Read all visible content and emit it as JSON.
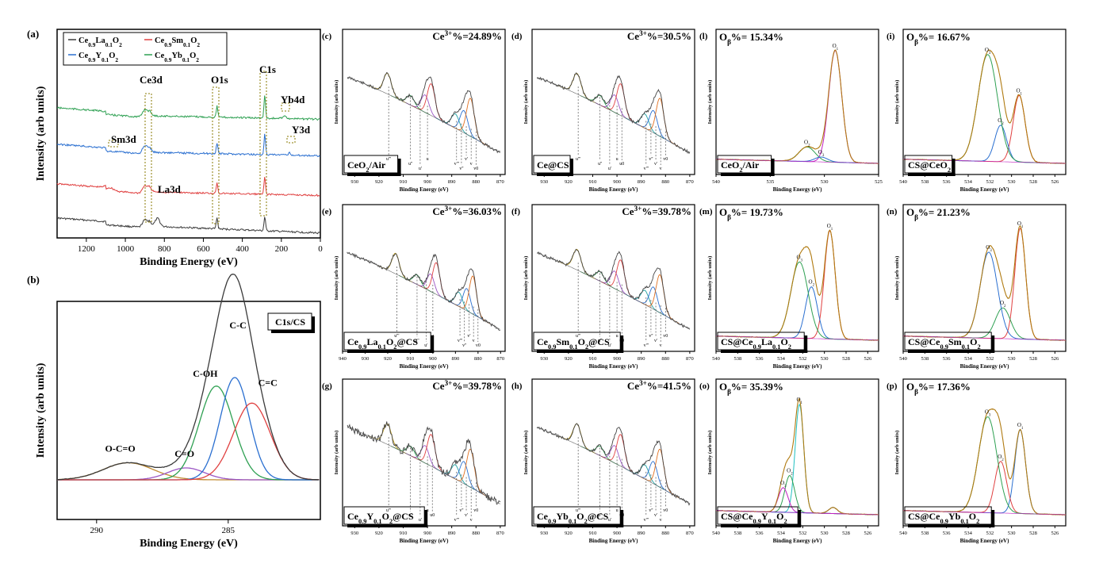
{
  "figure": {
    "panel_letters": {
      "a": "(a)",
      "b": "(b)",
      "c": "(c)",
      "d": "(d)",
      "e": "(e)",
      "f": "(f)",
      "g": "(g)",
      "h": "(h)",
      "l": "(l)",
      "i": "(i)",
      "m": "(m)",
      "n": "(n)",
      "o": "(o)",
      "p": "(p)"
    }
  },
  "chart_data": [
    {
      "id": "a",
      "type": "line",
      "xlabel": "Binding Energy (eV)",
      "ylabel": "Intensity (arb units)",
      "xlim": [
        1350,
        0
      ],
      "xticks": [
        1200,
        1000,
        800,
        600,
        400,
        200,
        0
      ],
      "legend": [
        "Ce0.9La0.1O2",
        "Ce0.9Sm0.1O2",
        "Ce0.9Y0.1O2",
        "Ce0.9Yb0.1O2"
      ],
      "legend_rich": [
        [
          [
            "Ce",
            ""
          ],
          [
            "0.9",
            "sub"
          ],
          [
            "La",
            ""
          ],
          [
            "0.1",
            "sub"
          ],
          [
            "O",
            ""
          ],
          [
            "2",
            "sub"
          ]
        ],
        [
          [
            "Ce",
            ""
          ],
          [
            "0.9",
            "sub"
          ],
          [
            "Sm",
            ""
          ],
          [
            "0.1",
            "sub"
          ],
          [
            "O",
            ""
          ],
          [
            "2",
            "sub"
          ]
        ],
        [
          [
            "Ce",
            ""
          ],
          [
            "0.9",
            "sub"
          ],
          [
            "Y",
            ""
          ],
          [
            "0.1",
            "sub"
          ],
          [
            "O",
            ""
          ],
          [
            "2",
            "sub"
          ]
        ],
        [
          [
            "Ce",
            ""
          ],
          [
            "0.9",
            "sub"
          ],
          [
            "Yb",
            ""
          ],
          [
            "0.1",
            "sub"
          ],
          [
            "O",
            ""
          ],
          [
            "2",
            "sub"
          ]
        ]
      ],
      "series_colors": [
        "#3a3a3a",
        "#e04040",
        "#2a6fd0",
        "#2ea052"
      ],
      "annotations": [
        "Ce3d",
        "O1s",
        "C1s",
        "Yb4d",
        "Y3d",
        "Sm3d",
        "La3d"
      ]
    },
    {
      "id": "b",
      "type": "line",
      "xlabel": "Binding Energy (eV)",
      "ylabel": "Intensity (arb units)",
      "xlim": [
        291.5,
        281.5
      ],
      "xticks": [
        290,
        285
      ],
      "label_box": "C1s/CS",
      "peaks": [
        {
          "label": "O-C=O",
          "center": 288.8,
          "height": 0.1,
          "width": 0.95,
          "color": "#c08a30"
        },
        {
          "label": "C=O",
          "center": 286.6,
          "height": 0.07,
          "width": 0.7,
          "color": "#9a55c4"
        },
        {
          "label": "C-OH",
          "center": 285.45,
          "height": 0.55,
          "width": 0.65,
          "color": "#2ea052"
        },
        {
          "label": "C-C",
          "center": 284.75,
          "height": 0.6,
          "width": 0.55,
          "color": "#2a6fd0"
        },
        {
          "label": "C=C",
          "center": 284.1,
          "height": 0.45,
          "width": 0.7,
          "color": "#e04040"
        }
      ],
      "envelope_color": "#3a3a3a"
    },
    {
      "id": "c",
      "type": "line",
      "xlabel": "Binding Energy (eV)",
      "ylabel": "Intensity (arb units)",
      "xlim": [
        935,
        868
      ],
      "xticks": [
        930,
        920,
        910,
        900,
        890,
        880,
        870
      ],
      "percent": "Ce3+%=24.89%",
      "percent_rich": [
        [
          "Ce",
          ""
        ],
        [
          "3+",
          "sup"
        ],
        [
          "%=24.89%",
          ""
        ]
      ],
      "sample": "CeO2/Air",
      "sample_rich": [
        [
          "CeO",
          ""
        ],
        [
          "2",
          "sub"
        ],
        [
          "/Air",
          ""
        ]
      ],
      "peak_labels": [
        "u'''",
        "u''",
        "u'",
        "u",
        "v'''",
        "v''",
        "v'",
        "v",
        "v0"
      ]
    },
    {
      "id": "d",
      "type": "line",
      "xlabel": "Binding Energy (eV)",
      "ylabel": "Intensity (arb units)",
      "xlim": [
        935,
        868
      ],
      "xticks": [
        930,
        920,
        910,
        900,
        890,
        880,
        870
      ],
      "percent": "Ce3+%=30.5%",
      "percent_rich": [
        [
          "Ce",
          ""
        ],
        [
          "3+",
          "sup"
        ],
        [
          "%=30.5%",
          ""
        ]
      ],
      "sample": "Ce@CS",
      "sample_rich": [
        [
          "Ce@CS",
          ""
        ]
      ],
      "peak_labels": [
        "u'''",
        "u''",
        "u'",
        "u",
        "u0",
        "v'''",
        "v''",
        "v'",
        "v",
        "v0"
      ]
    },
    {
      "id": "e",
      "type": "line",
      "xlabel": "Binding Energy (eV)",
      "ylabel": "Intensity (arb units)",
      "xlim": [
        940,
        868
      ],
      "xticks": [
        940,
        930,
        920,
        910,
        900,
        890,
        880,
        870
      ],
      "percent": "Ce3+%=36.03%",
      "percent_rich": [
        [
          "Ce",
          ""
        ],
        [
          "3+",
          "sup"
        ],
        [
          "%=36.03%",
          ""
        ]
      ],
      "sample": "Ce0.9La0.1O2@CS",
      "sample_rich": [
        [
          "Ce",
          ""
        ],
        [
          "0.9",
          "sub"
        ],
        [
          "La",
          ""
        ],
        [
          "0.1",
          "sub"
        ],
        [
          "O",
          ""
        ],
        [
          "2",
          "sub"
        ],
        [
          "@CS",
          ""
        ]
      ],
      "peak_labels": [
        "u'''",
        "u''",
        "u'",
        "u",
        "v'''",
        "v''",
        "v'",
        "v",
        "v0"
      ]
    },
    {
      "id": "f",
      "type": "line",
      "xlabel": "Binding Energy (eV)",
      "ylabel": "Intensity (arb units)",
      "xlim": [
        935,
        868
      ],
      "xticks": [
        930,
        920,
        910,
        900,
        890,
        880,
        870
      ],
      "percent": "Ce3+%=39.78%",
      "percent_rich": [
        [
          "Ce",
          ""
        ],
        [
          "3+",
          "sup"
        ],
        [
          "%=39.78%",
          ""
        ]
      ],
      "sample": "Ce0.9Sm0.1O2@CS",
      "sample_rich": [
        [
          "Ce",
          ""
        ],
        [
          "0.9",
          "sub"
        ],
        [
          "Sm",
          ""
        ],
        [
          "0.1",
          "sub"
        ],
        [
          "O",
          ""
        ],
        [
          "2",
          "sub"
        ],
        [
          "@CS",
          ""
        ]
      ],
      "peak_labels": [
        "u'''",
        "u''",
        "u'",
        "u",
        "u0",
        "v'''",
        "v''",
        "v'",
        "v",
        "v0"
      ]
    },
    {
      "id": "g",
      "type": "line",
      "xlabel": "Binding Energy (eV)",
      "ylabel": "Intensity (arb units)",
      "xlim": [
        935,
        868
      ],
      "xticks": [
        930,
        920,
        910,
        900,
        890,
        880,
        870
      ],
      "percent": "Ce3+%=39.78%",
      "percent_rich": [
        [
          "Ce",
          ""
        ],
        [
          "3+",
          "sup"
        ],
        [
          "%=39.78%",
          ""
        ]
      ],
      "sample": "Ce0.9Y0.1O2@CS",
      "sample_rich": [
        [
          "Ce",
          ""
        ],
        [
          "0.9",
          "sub"
        ],
        [
          "Y",
          ""
        ],
        [
          "0.1",
          "sub"
        ],
        [
          "O",
          ""
        ],
        [
          "2",
          "sub"
        ],
        [
          "@CS",
          ""
        ]
      ],
      "peak_labels": [
        "u'''",
        "u''",
        "u'",
        "u",
        "u0",
        "v'''",
        "v''",
        "v'",
        "v",
        "v0"
      ]
    },
    {
      "id": "h",
      "type": "line",
      "xlabel": "Binding Energy (eV)",
      "ylabel": "Intensity (arb units)",
      "xlim": [
        935,
        868
      ],
      "xticks": [
        930,
        920,
        910,
        900,
        890,
        880,
        870
      ],
      "percent": "Ce3+%=41.5%",
      "percent_rich": [
        [
          "Ce",
          ""
        ],
        [
          "3+",
          "sup"
        ],
        [
          "%=41.5%",
          ""
        ]
      ],
      "sample": "Ce0.9Yb0.1O2@CS",
      "sample_rich": [
        [
          "Ce",
          ""
        ],
        [
          "0.9",
          "sub"
        ],
        [
          "Yb",
          ""
        ],
        [
          "0.1",
          "sub"
        ],
        [
          "O",
          ""
        ],
        [
          "2",
          "sub"
        ],
        [
          "@CS",
          ""
        ]
      ],
      "peak_labels": [
        "u'''",
        "u''",
        "u'",
        "u",
        "u0",
        "v'''",
        "v''",
        "v'",
        "v",
        "v0"
      ]
    },
    {
      "id": "l",
      "type": "line",
      "xlabel": "Binding Energy (eV)",
      "ylabel": "Intensity (arb units)",
      "xlim": [
        540,
        525
      ],
      "xticks": [
        540,
        535,
        530,
        525
      ],
      "percent": "Oβ%= 15.34%",
      "percent_rich": [
        [
          "O",
          ""
        ],
        [
          "β",
          "sub"
        ],
        [
          "%= 15.34%",
          ""
        ]
      ],
      "sample": "CeO2/Air",
      "sample_rich": [
        [
          "CeO",
          ""
        ],
        [
          "2",
          "sub"
        ],
        [
          "/Air",
          ""
        ]
      ],
      "peak_labels": [
        "O1",
        "O2",
        "O3"
      ],
      "peaks": [
        {
          "center": 529.0,
          "height": 0.92,
          "width": 0.6,
          "color": "#c020c0"
        },
        {
          "center": 531.6,
          "height": 0.12,
          "width": 0.75,
          "color": "#2ea052"
        },
        {
          "center": 530.3,
          "height": 0.04,
          "width": 0.6,
          "color": "#2a6fd0"
        }
      ]
    },
    {
      "id": "i",
      "type": "line",
      "xlabel": "Binding Energy (eV)",
      "ylabel": "Intensity (arb units)",
      "xlim": [
        540,
        525
      ],
      "xticks": [
        540,
        538,
        536,
        534,
        532,
        530,
        528,
        526
      ],
      "percent": "Oβ%= 16.67%",
      "percent_rich": [
        [
          "O",
          ""
        ],
        [
          "β",
          "sub"
        ],
        [
          "%= 16.67%",
          ""
        ]
      ],
      "sample": "CS@CeO2",
      "sample_rich": [
        [
          "CS@CeO",
          ""
        ],
        [
          "2",
          "sub"
        ]
      ],
      "peak_labels": [
        "O1",
        "O2",
        "O3"
      ],
      "peaks": [
        {
          "center": 529.3,
          "height": 0.55,
          "width": 0.55,
          "color": "#e04040"
        },
        {
          "center": 531.0,
          "height": 0.3,
          "width": 0.55,
          "color": "#2a6fd0"
        },
        {
          "center": 532.2,
          "height": 0.88,
          "width": 0.9,
          "color": "#2ea052"
        }
      ]
    },
    {
      "id": "m",
      "type": "line",
      "xlabel": "Binding Energy (eV)",
      "ylabel": "Intensity (arb units)",
      "xlim": [
        540,
        525
      ],
      "xticks": [
        540,
        538,
        536,
        534,
        532,
        530,
        528,
        526
      ],
      "percent": "Oβ%= 19.73%",
      "percent_rich": [
        [
          "O",
          ""
        ],
        [
          "β",
          "sub"
        ],
        [
          "%= 19.73%",
          ""
        ]
      ],
      "sample": "CS@Ce0.9La0.1O2",
      "sample_rich": [
        [
          "CS@Ce",
          ""
        ],
        [
          "0.9",
          "sub"
        ],
        [
          "La",
          ""
        ],
        [
          "0.1",
          "sub"
        ],
        [
          "O",
          ""
        ],
        [
          "2",
          "sub"
        ]
      ],
      "peak_labels": [
        "O1",
        "O2",
        "O3"
      ],
      "peaks": [
        {
          "center": 529.5,
          "height": 0.88,
          "width": 0.5,
          "color": "#e04040"
        },
        {
          "center": 531.2,
          "height": 0.42,
          "width": 0.55,
          "color": "#2a6fd0"
        },
        {
          "center": 532.3,
          "height": 0.62,
          "width": 0.8,
          "color": "#2ea052"
        }
      ]
    },
    {
      "id": "n",
      "type": "line",
      "xlabel": "Binding Energy (eV)",
      "ylabel": "Intensity (arb units)",
      "xlim": [
        540,
        525
      ],
      "xticks": [
        540,
        538,
        536,
        534,
        532,
        530,
        528,
        526
      ],
      "percent": "Oβ%= 21.23%",
      "percent_rich": [
        [
          "O",
          ""
        ],
        [
          "β",
          "sub"
        ],
        [
          "%= 21.23%",
          ""
        ]
      ],
      "sample": "CS@Ce0.9Sm0.1O2",
      "sample_rich": [
        [
          "CS@Ce",
          ""
        ],
        [
          "0.9",
          "sub"
        ],
        [
          "Sm",
          ""
        ],
        [
          "0.1",
          "sub"
        ],
        [
          "O",
          ""
        ],
        [
          "2",
          "sub"
        ]
      ],
      "peak_labels": [
        "O1",
        "O2",
        "O3"
      ],
      "peaks": [
        {
          "center": 529.2,
          "height": 0.9,
          "width": 0.5,
          "color": "#e04040"
        },
        {
          "center": 530.8,
          "height": 0.25,
          "width": 0.7,
          "color": "#2ea052"
        },
        {
          "center": 532.1,
          "height": 0.7,
          "width": 0.8,
          "color": "#2a6fd0"
        }
      ]
    },
    {
      "id": "o",
      "type": "line",
      "xlabel": "Binding Energy (eV)",
      "ylabel": "Intensity (arb units)",
      "xlim": [
        540,
        525
      ],
      "xticks": [
        540,
        538,
        536,
        534,
        532,
        530,
        528,
        526
      ],
      "percent": "Oβ%= 35.39%",
      "percent_rich": [
        [
          "O",
          ""
        ],
        [
          "β",
          "sub"
        ],
        [
          "%= 35.39%",
          ""
        ]
      ],
      "sample": "CS@Ce0.9Y0.1O2",
      "sample_rich": [
        [
          "CS@Ce",
          ""
        ],
        [
          "0.9",
          "sub"
        ],
        [
          "Y",
          ""
        ],
        [
          "0.1",
          "sub"
        ],
        [
          "O",
          ""
        ],
        [
          "2",
          "sub"
        ]
      ],
      "peak_labels": [
        "O1",
        "O2",
        "O3"
      ],
      "peaks": [
        {
          "center": 532.3,
          "height": 0.88,
          "width": 0.4,
          "color": "#20c0c0"
        },
        {
          "center": 533.2,
          "height": 0.3,
          "width": 0.45,
          "color": "#2ea052"
        },
        {
          "center": 533.8,
          "height": 0.2,
          "width": 0.45,
          "color": "#c020c0"
        },
        {
          "center": 529.2,
          "height": 0.05,
          "width": 0.4,
          "color": "#2a6fd0"
        }
      ]
    },
    {
      "id": "p",
      "type": "line",
      "xlabel": "Binding Energy (eV)",
      "ylabel": "Intensity (arb units)",
      "xlim": [
        540,
        525
      ],
      "xticks": [
        540,
        538,
        536,
        534,
        532,
        530,
        528,
        526
      ],
      "percent": "Oβ%= 17.36%",
      "percent_rich": [
        [
          "O",
          ""
        ],
        [
          "β",
          "sub"
        ],
        [
          "%= 17.36%",
          ""
        ]
      ],
      "sample": "CS@Ce0.9Yb0.1O2",
      "sample_rich": [
        [
          "CS@Ce",
          ""
        ],
        [
          "0.9",
          "sub"
        ],
        [
          "Yb",
          ""
        ],
        [
          "0.1",
          "sub"
        ],
        [
          "O",
          ""
        ],
        [
          "2",
          "sub"
        ]
      ],
      "peak_labels": [
        "O1",
        "O2",
        "O3"
      ],
      "peaks": [
        {
          "center": 529.2,
          "height": 0.68,
          "width": 0.5,
          "color": "#2a6fd0"
        },
        {
          "center": 531.0,
          "height": 0.42,
          "width": 0.55,
          "color": "#e04040"
        },
        {
          "center": 532.2,
          "height": 0.78,
          "width": 0.85,
          "color": "#2ea052"
        }
      ]
    }
  ]
}
